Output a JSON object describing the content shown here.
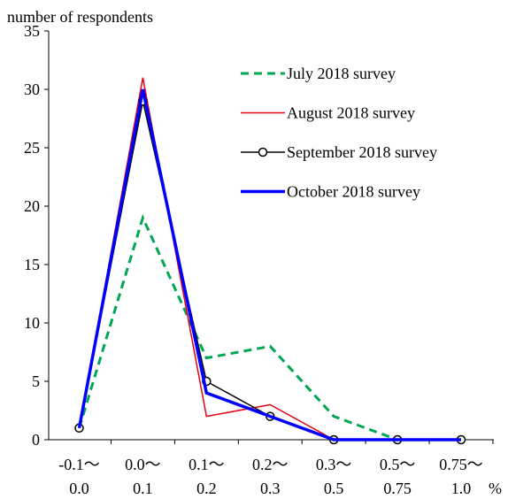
{
  "chart_data": {
    "type": "line",
    "ylabel": "number of respondents",
    "xunit": "%",
    "ylim": [
      0,
      35
    ],
    "yticks": [
      0,
      5,
      10,
      15,
      20,
      25,
      30,
      35
    ],
    "categories": [
      {
        "top": "-0.1〜",
        "bottom": "0.0"
      },
      {
        "top": "0.0〜",
        "bottom": "0.1"
      },
      {
        "top": "0.1〜",
        "bottom": "0.2"
      },
      {
        "top": "0.2〜",
        "bottom": "0.3"
      },
      {
        "top": "0.3〜",
        "bottom": "0.5"
      },
      {
        "top": "0.5〜",
        "bottom": "0.75"
      },
      {
        "top": "0.75〜",
        "bottom": "1.0"
      }
    ],
    "series": [
      {
        "name": "July 2018 survey",
        "color": "#00a651",
        "style": "dashed",
        "values": [
          1,
          19,
          7,
          8,
          2,
          0,
          0
        ]
      },
      {
        "name": "August 2018 survey",
        "color": "#e60012",
        "style": "thin",
        "values": [
          1,
          31,
          2,
          3,
          0,
          0,
          0
        ]
      },
      {
        "name": "September 2018 survey",
        "color": "#000000",
        "style": "markers",
        "values": [
          1,
          29,
          5,
          2,
          0,
          0,
          0
        ]
      },
      {
        "name": "October 2018 survey",
        "color": "#0000ff",
        "style": "thick",
        "values": [
          1,
          30,
          4,
          2,
          0,
          0,
          0
        ]
      }
    ],
    "legend_position": "top-right",
    "grid": false
  }
}
